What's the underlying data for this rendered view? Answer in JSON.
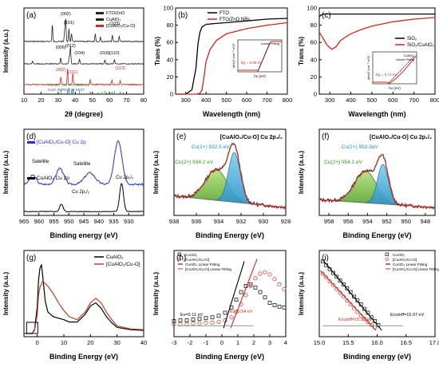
{
  "chart_data": [
    {
      "id": "a",
      "panel_label": "(a)",
      "type": "line",
      "xlabel": "2θ (degree)",
      "ylabel": "Intensity (a.u.)",
      "xlim": [
        10,
        80
      ],
      "xticks": [
        "10",
        "20",
        "30",
        "40",
        "50",
        "60",
        "70",
        "80"
      ],
      "legend": [
        "FTO/ZnO",
        "CuAlO₂",
        "[CuAlO₂/Cu-O]"
      ],
      "legend_position": "top-right",
      "series_colors": [
        "#222222",
        "#222222",
        "#cc2a1e"
      ],
      "peak_labels": [
        {
          "text": "(002)",
          "x": 34.4
        },
        {
          "text": "(101)",
          "x": 36.3
        },
        {
          "text": "(012)",
          "x": 37.2
        },
        {
          "text": "(006)",
          "x": 31.5
        },
        {
          "text": "(104)",
          "x": 42.5
        },
        {
          "text": "(018)",
          "x": 57.3
        },
        {
          "text": "(110)",
          "x": 62.9
        },
        {
          "text": "(103)",
          "x": 63.0
        },
        {
          "text": "(002)",
          "x": 31.6
        },
        {
          "text": "(111)",
          "x": 38.6
        },
        {
          "text": "(113)",
          "x": 66.3
        }
      ],
      "reference_labels": [
        "CuAlO₂ JCPDS 35-1401",
        "CuO JCPDS 45-0937"
      ]
    },
    {
      "id": "b",
      "panel_label": "(b)",
      "type": "line",
      "xlabel": "Wavelength (nm)",
      "ylabel": "Trans (%)",
      "xlim": [
        250,
        800
      ],
      "ylim": [
        0,
        100
      ],
      "xticks": [
        "300",
        "400",
        "500",
        "600",
        "700",
        "800"
      ],
      "yticks": [
        "0",
        "20",
        "40",
        "60",
        "80",
        "100"
      ],
      "legend_position": "top-right",
      "series": [
        {
          "name": "FTO",
          "color": "#000000",
          "x": [
            250,
            300,
            330,
            350,
            360,
            370,
            380,
            400,
            450,
            500,
            600,
            700,
            800
          ],
          "y": [
            0,
            0,
            5,
            30,
            58,
            72,
            78,
            81,
            82,
            83,
            85,
            87,
            88
          ]
        },
        {
          "name": "FTO/ZnO NRs",
          "color": "#cc2a1e",
          "x": [
            250,
            300,
            350,
            370,
            380,
            390,
            400,
            420,
            450,
            500,
            600,
            700,
            800
          ],
          "y": [
            0,
            0,
            0,
            1,
            5,
            20,
            38,
            52,
            62,
            70,
            76,
            80,
            83
          ]
        }
      ],
      "inset": {
        "xlabel": "hν (eV)",
        "ylabel": "(αhν)² (cm⁻¹·eV)²",
        "legend": [
          "Linear Fitting"
        ],
        "annotation": "Eg = 3.26 eV"
      }
    },
    {
      "id": "c",
      "panel_label": "(c)",
      "type": "line",
      "xlabel": "Wavelength (nm)",
      "ylabel": "Trans (%)",
      "xlim": [
        250,
        800
      ],
      "ylim": [
        0,
        100
      ],
      "xticks": [
        "300",
        "400",
        "500",
        "600",
        "700",
        "800"
      ],
      "yticks": [
        "0",
        "20",
        "40",
        "60",
        "80",
        "100"
      ],
      "legend_position": "right",
      "series": [
        {
          "name": "SiO₂",
          "color": "#000000",
          "x": [
            250,
            260,
            270,
            300,
            400,
            500,
            600,
            700,
            800
          ],
          "y": [
            90,
            92,
            93,
            93,
            93,
            93,
            93,
            93,
            93
          ]
        },
        {
          "name": "SiO₂/CuAlO₂",
          "color": "#cc2a1e",
          "x": [
            250,
            270,
            290,
            310,
            330,
            350,
            380,
            400,
            450,
            500,
            600,
            700,
            800
          ],
          "y": [
            72,
            64,
            56,
            52,
            55,
            62,
            67,
            70,
            75,
            79,
            84,
            87,
            89
          ]
        }
      ],
      "inset": {
        "xlabel": "hν (eV)",
        "ylabel": "(αhν)² (cm⁻¹·eV)²",
        "legend": [
          "CuAlO₂",
          "Linear Fitting"
        ],
        "annotation": "Eg = 3.71 eV"
      }
    },
    {
      "id": "d",
      "panel_label": "(d)",
      "type": "line",
      "xlabel": "Binding energy (eV)",
      "ylabel": "Intensity (a.u.)",
      "xlim": [
        965,
        925
      ],
      "xticks": [
        "965",
        "960",
        "955",
        "950",
        "945",
        "940",
        "935",
        "930"
      ],
      "series_names": [
        "[CuAlO₂/Cu-O] Cu 2p",
        "CuAlO₂ Cu 2p"
      ],
      "series_colors": [
        "#2233cc",
        "#000000"
      ],
      "annotations": [
        "Satellite",
        "Satellite",
        "Cu 2p₃/₂",
        "Cu 2p₁/₂"
      ]
    },
    {
      "id": "e",
      "panel_label": "(e)",
      "type": "line",
      "title": "[CuAlO₂/Cu-O] Cu 2p₃/₂",
      "xlabel": "Binding Energy (eV)",
      "ylabel": "Intensity (a.u.)",
      "xlim": [
        938,
        928
      ],
      "xticks": [
        "938",
        "936",
        "934",
        "932",
        "930",
        "928"
      ],
      "components": [
        {
          "name": "Cu(1+) 932.5 eV",
          "center": 932.5,
          "color": "#56b4d8"
        },
        {
          "name": "Cu(2+) 934.2 eV",
          "center": 934.2,
          "color": "#7cc043"
        }
      ]
    },
    {
      "id": "f",
      "panel_label": "(f)",
      "type": "line",
      "title": "[CuAlO₂/Cu-O] Cu 2p₁/₂",
      "xlabel": "Binding Energy (eV)",
      "ylabel": "Intensity (a.u.)",
      "xlim": [
        959,
        947
      ],
      "xticks": [
        "958",
        "956",
        "954",
        "952",
        "950",
        "948"
      ],
      "components": [
        {
          "name": "Cu(1+) 952.3eV",
          "center": 952.3,
          "color": "#56b4d8"
        },
        {
          "name": "Cu(2+) 954.1 eV",
          "center": 954.1,
          "color": "#7cc043"
        }
      ]
    },
    {
      "id": "g",
      "panel_label": "(g)",
      "type": "line",
      "xlabel": "Binding Energy (eV)",
      "ylabel": "Intensity (a.u.)",
      "xlim": [
        -5,
        40
      ],
      "xticks": [
        "0",
        "10",
        "20",
        "30",
        "40"
      ],
      "legend_position": "top-right",
      "series": [
        {
          "name": "CuAlO₂",
          "color": "#000000",
          "x": [
            -5,
            -2,
            -1,
            0,
            0.5,
            1,
            1.6,
            2.2,
            3,
            4,
            6,
            8,
            10,
            12,
            15,
            18,
            20,
            22,
            24,
            26,
            28,
            30,
            35,
            40
          ],
          "y": [
            0,
            0,
            0.05,
            0.35,
            0.7,
            0.85,
            0.9,
            0.7,
            0.42,
            0.28,
            0.22,
            0.2,
            0.18,
            0.15,
            0.15,
            0.25,
            0.36,
            0.4,
            0.33,
            0.22,
            0.14,
            0.08,
            0.05,
            0.04
          ]
        },
        {
          "name": "[CuAlO₂/Cu-O]",
          "color": "#b5432a",
          "x": [
            -5,
            -2,
            -1,
            0,
            0.5,
            1,
            2,
            3,
            4,
            6,
            8,
            10,
            12,
            15,
            18,
            20,
            22,
            24,
            26,
            28,
            30,
            35,
            40
          ],
          "y": [
            0,
            0,
            0.04,
            0.25,
            0.5,
            0.6,
            0.68,
            0.65,
            0.62,
            0.52,
            0.4,
            0.3,
            0.22,
            0.18,
            0.28,
            0.4,
            0.46,
            0.4,
            0.28,
            0.18,
            0.1,
            0.06,
            0.05
          ]
        }
      ]
    },
    {
      "id": "h",
      "panel_label": "(h)",
      "type": "scatter",
      "xlabel": "Binding Energy (eV)",
      "ylabel": "Intensity (a.u.)",
      "xlim": [
        -3,
        4
      ],
      "xticks": [
        "-3",
        "-2",
        "-1",
        "0",
        "1",
        "2",
        "3",
        "4"
      ],
      "legend_position": "top-left",
      "legend": [
        "CuAlO₂",
        "[CuAlO₂/Cu-O]",
        "CuAlO₂ Linear Fitting",
        "[CuAlO₂/Cu-O] Linear Fitting"
      ],
      "series": [
        {
          "name": "CuAlO₂",
          "color": "#000000",
          "marker": "square",
          "x": [
            -3,
            -2.6,
            -2.2,
            -1.8,
            -1.4,
            -1,
            -0.6,
            -0.2,
            0.2,
            0.6,
            0.9,
            1.2,
            1.5,
            1.8,
            2.1,
            2.4,
            2.7,
            3,
            3.3,
            3.6,
            3.9
          ],
          "y": [
            0.14,
            0.15,
            0.15,
            0.16,
            0.17,
            0.18,
            0.19,
            0.21,
            0.25,
            0.32,
            0.42,
            0.52,
            0.6,
            0.62,
            0.58,
            0.52,
            0.45,
            0.38,
            0.35,
            0.33,
            0.32
          ]
        },
        {
          "name": "[CuAlO₂/Cu-O]",
          "color": "#cc2a1e",
          "marker": "circle",
          "x": [
            -3,
            -2.6,
            -2.2,
            -1.8,
            -1.4,
            -1,
            -0.6,
            -0.2,
            0.2,
            0.6,
            0.9,
            1.2,
            1.5,
            1.8,
            2.1,
            2.4,
            2.7,
            3,
            3.3,
            3.6,
            3.9
          ],
          "y": [
            0.1,
            0.1,
            0.1,
            0.11,
            0.11,
            0.12,
            0.12,
            0.13,
            0.15,
            0.19,
            0.26,
            0.36,
            0.48,
            0.6,
            0.7,
            0.76,
            0.78,
            0.75,
            0.69,
            0.62,
            0.56
          ]
        }
      ],
      "annotations": [
        "Ev=0.11 eV",
        "Ev=0.54 eV"
      ]
    },
    {
      "id": "i",
      "panel_label": "(i)",
      "type": "scatter",
      "xlabel": "Binding energy (eV)",
      "ylabel": "Intensity (a.u.)",
      "xlim": [
        15.0,
        17.0
      ],
      "xticks": [
        "15.0",
        "15.5",
        "16.0",
        "16.5",
        "17.0"
      ],
      "legend_position": "top-right",
      "legend": [
        "CuAlO₂",
        "[CuAlO₂/Cu-O]",
        "CuAlO₂ Linear Fitting",
        "[CuAlO₂/Cu-O] Linear Fitting"
      ],
      "series": [
        {
          "name": "CuAlO₂",
          "color": "#000000",
          "marker": "square",
          "x": [
            15.06,
            15.12,
            15.18,
            15.24,
            15.3,
            15.36,
            15.42,
            15.48,
            15.54,
            15.6,
            15.66,
            15.72,
            15.78,
            15.84,
            15.9,
            15.96,
            16.02
          ],
          "y": [
            0.92,
            0.87,
            0.82,
            0.77,
            0.72,
            0.67,
            0.62,
            0.57,
            0.52,
            0.46,
            0.41,
            0.36,
            0.3,
            0.25,
            0.19,
            0.14,
            0.09
          ]
        },
        {
          "name": "[CuAlO₂/Cu-O]",
          "color": "#cc2a1e",
          "marker": "circle",
          "x": [
            15.06,
            15.12,
            15.18,
            15.24,
            15.3,
            15.36,
            15.42,
            15.48,
            15.54,
            15.6,
            15.66,
            15.72,
            15.78,
            15.84,
            15.9,
            15.96
          ],
          "y": [
            0.76,
            0.71,
            0.66,
            0.61,
            0.56,
            0.51,
            0.46,
            0.41,
            0.36,
            0.31,
            0.26,
            0.21,
            0.17,
            0.13,
            0.09,
            0.06
          ]
        }
      ],
      "annotations": [
        "Ecutoff=15.97 eV",
        "Ecutoff=15.91 eV"
      ]
    }
  ]
}
